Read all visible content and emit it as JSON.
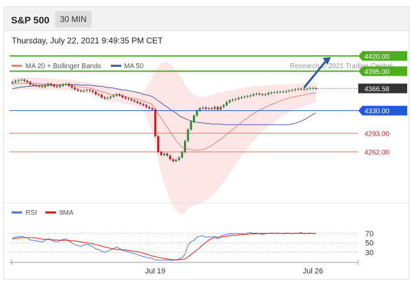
{
  "header": {
    "symbol": "S&P 500",
    "timeframe": "30 MIN"
  },
  "datetime": "Thursday, July 22, 2021 9:49:35 PM CET",
  "colors": {
    "up": "#2e8b2e",
    "down": "#c41e1e",
    "ma20": "#f08080",
    "bollinger_fill": "#fde2e2",
    "ma50": "#4a5fa8",
    "resistance": "#4caf1e",
    "pivot": "#1f5bd4",
    "support": "#e57373",
    "current_price": "#333333",
    "arrow": "#2a5ea8",
    "rsi": "#4f74dc",
    "rsi_ma": "#d61a1a"
  },
  "chart_data": [
    {
      "type": "candlestick",
      "legend": [
        {
          "name": "MA 20 + Bollinger Bands",
          "color": "#f08080"
        },
        {
          "name": "MA 50",
          "color": "#4a5fa8"
        }
      ],
      "credit": "Research © 2021 Trading Central",
      "ylim": [
        4180,
        4460
      ],
      "x_ticks": [
        {
          "label": "Jul 19",
          "index": 48
        },
        {
          "label": "Jul 26",
          "index": 101
        }
      ],
      "levels": [
        {
          "label": "4420.00",
          "value": 4420.0,
          "role": "resistance"
        },
        {
          "label": "4395.00",
          "value": 4395.0,
          "role": "resistance"
        },
        {
          "label": "4366.58",
          "value": 4366.58,
          "role": "current"
        },
        {
          "label": "4330.00",
          "value": 4330.0,
          "role": "pivot"
        },
        {
          "label": "4293.00",
          "value": 4293.0,
          "role": "support"
        },
        {
          "label": "4262.00",
          "value": 4262.0,
          "role": "support"
        }
      ],
      "arrow": {
        "from": [
          98,
          4368
        ],
        "to": [
          107,
          4418
        ]
      },
      "close": [
        4377,
        4379,
        4380,
        4381,
        4379,
        4377,
        4373,
        4372,
        4371,
        4370,
        4369,
        4371,
        4374,
        4372,
        4370,
        4369,
        4371,
        4373,
        4374,
        4371,
        4368,
        4365,
        4363,
        4362,
        4363,
        4364,
        4363,
        4361,
        4357,
        4356,
        4352,
        4350,
        4351,
        4353,
        4355,
        4357,
        4355,
        4352,
        4350,
        4349,
        4347,
        4345,
        4343,
        4341,
        4339,
        4336,
        4334,
        4332,
        4288,
        4262,
        4257,
        4259,
        4256,
        4250,
        4247,
        4249,
        4253,
        4262,
        4280,
        4299,
        4312,
        4322,
        4330,
        4334,
        4335,
        4333,
        4334,
        4333,
        4336,
        4332,
        4336,
        4339,
        4344,
        4347,
        4348,
        4349,
        4351,
        4352,
        4353,
        4354,
        4355,
        4357,
        4358,
        4357,
        4356,
        4357,
        4359,
        4360,
        4360,
        4361,
        4361,
        4361,
        4362,
        4363,
        4364,
        4365,
        4366,
        4365,
        4366,
        4366,
        4367,
        4367,
        4366
      ],
      "ma20": [
        4374,
        4374,
        4375,
        4375,
        4375,
        4375,
        4375,
        4375,
        4375,
        4374,
        4374,
        4374,
        4374,
        4374,
        4373,
        4373,
        4373,
        4373,
        4373,
        4372,
        4371,
        4371,
        4370,
        4369,
        4368,
        4368,
        4367,
        4366,
        4364,
        4363,
        4361,
        4360,
        4358,
        4357,
        4356,
        4356,
        4355,
        4354,
        4353,
        4352,
        4351,
        4350,
        4349,
        4347,
        4346,
        4344,
        4342,
        4340,
        4333,
        4325,
        4317,
        4310,
        4303,
        4295,
        4288,
        4281,
        4275,
        4270,
        4268,
        4267,
        4266,
        4265,
        4265,
        4265,
        4266,
        4268,
        4270,
        4273,
        4276,
        4280,
        4283,
        4287,
        4291,
        4295,
        4299,
        4303,
        4307,
        4311,
        4315,
        4318,
        4322,
        4325,
        4328,
        4331,
        4333,
        4336,
        4338,
        4340,
        4342,
        4344,
        4346,
        4348,
        4349,
        4351,
        4352,
        4353,
        4354,
        4355,
        4356,
        4357,
        4358,
        4359,
        4359
      ],
      "bollinger_upper": [
        4384,
        4384,
        4385,
        4385,
        4385,
        4385,
        4385,
        4385,
        4384,
        4384,
        4384,
        4384,
        4384,
        4383,
        4382,
        4382,
        4382,
        4382,
        4382,
        4381,
        4380,
        4380,
        4379,
        4378,
        4377,
        4377,
        4376,
        4375,
        4374,
        4373,
        4372,
        4371,
        4370,
        4369,
        4368,
        4368,
        4367,
        4366,
        4365,
        4364,
        4363,
        4362,
        4361,
        4360,
        4362,
        4368,
        4376,
        4385,
        4395,
        4403,
        4408,
        4410,
        4410,
        4407,
        4402,
        4396,
        4389,
        4381,
        4373,
        4366,
        4360,
        4356,
        4354,
        4353,
        4353,
        4354,
        4355,
        4356,
        4358,
        4359,
        4360,
        4361,
        4362,
        4363,
        4364,
        4365,
        4366,
        4367,
        4368,
        4369,
        4369,
        4370,
        4371,
        4371,
        4371,
        4372,
        4372,
        4372,
        4373,
        4373,
        4373,
        4373,
        4374,
        4374,
        4374,
        4374,
        4375,
        4375,
        4375,
        4375,
        4375,
        4375,
        4375
      ],
      "bollinger_lower": [
        4364,
        4364,
        4365,
        4365,
        4365,
        4365,
        4365,
        4365,
        4366,
        4364,
        4364,
        4364,
        4364,
        4365,
        4364,
        4364,
        4364,
        4364,
        4364,
        4363,
        4362,
        4362,
        4361,
        4360,
        4359,
        4359,
        4358,
        4357,
        4354,
        4353,
        4350,
        4349,
        4346,
        4345,
        4344,
        4344,
        4343,
        4342,
        4341,
        4340,
        4339,
        4338,
        4337,
        4334,
        4330,
        4320,
        4308,
        4295,
        4271,
        4247,
        4226,
        4210,
        4196,
        4183,
        4174,
        4166,
        4161,
        4159,
        4163,
        4168,
        4172,
        4174,
        4176,
        4177,
        4179,
        4182,
        4185,
        4190,
        4194,
        4201,
        4206,
        4213,
        4220,
        4227,
        4234,
        4241,
        4248,
        4255,
        4262,
        4267,
        4275,
        4280,
        4285,
        4291,
        4295,
        4300,
        4304,
        4308,
        4311,
        4315,
        4319,
        4323,
        4324,
        4328,
        4330,
        4332,
        4333,
        4335,
        4337,
        4339,
        4341,
        4343,
        4343
      ],
      "ma50": [
        4366,
        4367,
        4368,
        4369,
        4369,
        4370,
        4370,
        4371,
        4371,
        4371,
        4372,
        4372,
        4372,
        4372,
        4372,
        4372,
        4372,
        4373,
        4373,
        4373,
        4373,
        4373,
        4373,
        4372,
        4372,
        4372,
        4372,
        4371,
        4371,
        4370,
        4370,
        4369,
        4368,
        4368,
        4367,
        4366,
        4365,
        4364,
        4364,
        4363,
        4362,
        4361,
        4360,
        4359,
        4357,
        4356,
        4355,
        4353,
        4350,
        4346,
        4343,
        4339,
        4336,
        4332,
        4329,
        4326,
        4322,
        4319,
        4317,
        4315,
        4313,
        4312,
        4311,
        4310,
        4310,
        4309,
        4309,
        4308,
        4308,
        4308,
        4308,
        4307,
        4307,
        4307,
        4307,
        4307,
        4307,
        4307,
        4307,
        4307,
        4307,
        4307,
        4307,
        4307,
        4307,
        4307,
        4307,
        4307,
        4307,
        4307,
        4307,
        4307,
        4307,
        4307,
        4308,
        4309,
        4311,
        4313,
        4315,
        4318,
        4321,
        4324,
        4326
      ]
    },
    {
      "type": "line",
      "legend": [
        {
          "name": "RSI",
          "color": "#4f74dc"
        },
        {
          "name": "9MA",
          "color": "#d61a1a"
        }
      ],
      "ylim": [
        10,
        80
      ],
      "y_ticks": [
        70,
        50,
        30
      ],
      "series": [
        {
          "name": "RSI",
          "values": [
            60,
            62,
            63,
            64,
            62,
            60,
            56,
            55,
            54,
            53,
            52,
            55,
            59,
            56,
            53,
            52,
            55,
            57,
            58,
            54,
            50,
            46,
            44,
            43,
            45,
            47,
            45,
            42,
            37,
            36,
            32,
            30,
            32,
            35,
            38,
            41,
            38,
            34,
            32,
            31,
            29,
            27,
            25,
            23,
            21,
            19,
            18,
            17,
            14,
            13,
            13,
            14,
            13,
            13,
            13,
            14,
            16,
            19,
            26,
            45,
            52,
            55,
            62,
            64,
            65,
            62,
            63,
            62,
            64,
            58,
            64,
            66,
            68,
            69,
            69,
            70,
            69,
            70,
            68,
            71,
            72,
            70,
            71,
            69,
            68,
            69,
            70,
            71,
            70,
            71,
            70,
            69,
            71,
            70,
            69,
            71,
            70,
            72,
            69,
            70,
            71,
            69,
            70
          ]
        },
        {
          "name": "9MA",
          "values": [
            58,
            59,
            60,
            61,
            61,
            61,
            61,
            61,
            60,
            59,
            58,
            57,
            57,
            57,
            56,
            56,
            55,
            55,
            55,
            55,
            54,
            54,
            53,
            52,
            51,
            50,
            49,
            48,
            46,
            45,
            43,
            41,
            40,
            38,
            37,
            36,
            36,
            35,
            35,
            34,
            33,
            32,
            31,
            30,
            28,
            26,
            24,
            22,
            21,
            19,
            18,
            17,
            16,
            15,
            14,
            14,
            14,
            15,
            16,
            20,
            25,
            30,
            35,
            40,
            46,
            51,
            56,
            59,
            61,
            62,
            62,
            63,
            64,
            65,
            66,
            66,
            67,
            67,
            68,
            68,
            69,
            69,
            69,
            70,
            70,
            70,
            70,
            70,
            70,
            70,
            70,
            70,
            70,
            70,
            70,
            70,
            70,
            70,
            70,
            70,
            70,
            70,
            70
          ]
        }
      ]
    }
  ]
}
